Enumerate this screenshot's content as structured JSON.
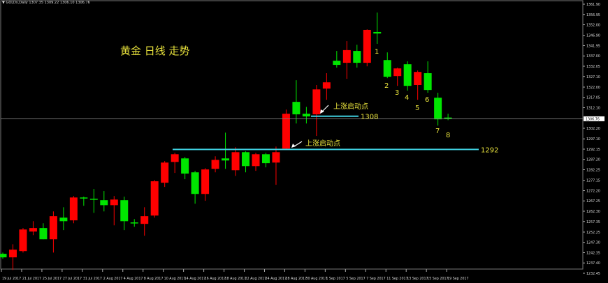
{
  "header": {
    "symbol": "GOLDs,Daily",
    "ohlc_text": "1307.35 1309.22 1306.10 1306.76",
    "collapse_icon": "triangle-down-icon"
  },
  "annotations": {
    "title": "黄金 日线 走势",
    "start_point_label_1": "上涨启动点",
    "start_point_label_2": "上涨启动点",
    "level_1308_label": "1308",
    "level_1292_label": "1292",
    "wave_labels": [
      "1",
      "2",
      "3",
      "4",
      "5",
      "6",
      "7",
      "8"
    ]
  },
  "colors": {
    "background": "#000000",
    "bull": "#ff0000",
    "bear": "#00e600",
    "level_line": "#40d0e0",
    "annotation_text": "#e6e03c",
    "current_price_line": "#808080"
  },
  "chart_data": {
    "type": "candlestick",
    "symbol": "GOLDs",
    "timeframe": "Daily",
    "ylim": [
      1232.45,
      1361.9
    ],
    "current_price": "1306.76",
    "y_ticks": [
      "1361.90",
      "1356.95",
      "1352.00",
      "1346.90",
      "1341.95",
      "1337.00",
      "1332.05",
      "1327.10",
      "1322.00",
      "1317.05",
      "1312.10",
      "1302.20",
      "1297.10",
      "1292.15",
      "1287.20",
      "1282.25",
      "1277.15",
      "1272.20",
      "1267.25",
      "1262.30",
      "1257.35",
      "1252.25",
      "1247.30",
      "1242.35",
      "1237.40",
      "1232.45"
    ],
    "x_ticks": [
      "19 Jul 2017",
      "21 Jul 2017",
      "25 Jul 2017",
      "27 Jul 2017",
      "31 Jul 2017",
      "2 Aug 2017",
      "4 Aug 2017",
      "8 Aug 2017",
      "10 Aug 2017",
      "14 Aug 2017",
      "16 Aug 2017",
      "18 Aug 2017",
      "22 Aug 2017",
      "24 Aug 2017",
      "28 Aug 2017",
      "30 Aug 2017",
      "1 Sep 2017",
      "5 Sep 2017",
      "7 Sep 2017",
      "11 Sep 2017",
      "13 Sep 2017",
      "15 Sep 2017",
      "19 Sep 2017"
    ],
    "levels": [
      {
        "value": 1308,
        "label": "1308"
      },
      {
        "value": 1292,
        "label": "1292"
      }
    ],
    "candles": [
      [
        1241.8,
        1242.4,
        1239.4,
        1240.1
      ],
      [
        1240.1,
        1246.4,
        1234.0,
        1243.8
      ],
      [
        1243.1,
        1254.2,
        1242.4,
        1253.5
      ],
      [
        1252.5,
        1257.5,
        1250.8,
        1254.2
      ],
      [
        1254.2,
        1256.5,
        1248.8,
        1248.8
      ],
      [
        1248.8,
        1262.2,
        1242.4,
        1259.9
      ],
      [
        1259.2,
        1264.2,
        1253.2,
        1257.5
      ],
      [
        1257.9,
        1269.6,
        1256.5,
        1268.9
      ],
      [
        1268.9,
        1269.3,
        1264.9,
        1268.6
      ],
      [
        1268.3,
        1273.0,
        1261.5,
        1267.9
      ],
      [
        1267.6,
        1272.0,
        1262.2,
        1265.2
      ],
      [
        1265.2,
        1269.6,
        1255.5,
        1267.9
      ],
      [
        1267.6,
        1269.3,
        1253.2,
        1257.5
      ],
      [
        1256.9,
        1258.5,
        1254.8,
        1256.5
      ],
      [
        1256.2,
        1264.2,
        1250.5,
        1259.9
      ],
      [
        1260.2,
        1277.3,
        1259.2,
        1276.7
      ],
      [
        1276.0,
        1286.4,
        1274.0,
        1285.7
      ],
      [
        1286.0,
        1290.4,
        1280.7,
        1289.7
      ],
      [
        1287.7,
        1288.4,
        1277.7,
        1280.4
      ],
      [
        1281.0,
        1281.7,
        1265.9,
        1270.6
      ],
      [
        1270.6,
        1283.0,
        1267.3,
        1282.4
      ],
      [
        1282.7,
        1288.7,
        1281.0,
        1287.0
      ],
      [
        1287.7,
        1300.1,
        1282.7,
        1286.7
      ],
      [
        1282.0,
        1293.1,
        1279.3,
        1290.7
      ],
      [
        1290.7,
        1291.1,
        1281.0,
        1284.0
      ],
      [
        1284.0,
        1290.4,
        1281.7,
        1289.7
      ],
      [
        1289.7,
        1290.4,
        1283.4,
        1285.4
      ],
      [
        1285.7,
        1293.4,
        1275.0,
        1290.7
      ],
      [
        1292.4,
        1311.2,
        1292.1,
        1309.2
      ],
      [
        1314.9,
        1325.3,
        1304.5,
        1308.9
      ],
      [
        1309.2,
        1312.5,
        1304.5,
        1307.9
      ],
      [
        1308.9,
        1323.0,
        1298.5,
        1320.9
      ],
      [
        1321.3,
        1328.7,
        1315.9,
        1324.3
      ],
      [
        1334.7,
        1339.4,
        1331.4,
        1332.7
      ],
      [
        1333.7,
        1344.1,
        1326.0,
        1339.8
      ],
      [
        1339.4,
        1342.4,
        1331.4,
        1333.7
      ],
      [
        1333.7,
        1349.8,
        1332.0,
        1349.5
      ],
      [
        1348.5,
        1357.9,
        1342.8,
        1347.8
      ],
      [
        1335.0,
        1338.7,
        1326.3,
        1327.0
      ],
      [
        1327.3,
        1331.4,
        1322.6,
        1331.0
      ],
      [
        1333.0,
        1334.4,
        1320.3,
        1322.6
      ],
      [
        1323.0,
        1330.0,
        1315.9,
        1329.3
      ],
      [
        1328.7,
        1334.4,
        1319.3,
        1320.6
      ],
      [
        1316.9,
        1319.3,
        1303.5,
        1306.5
      ],
      [
        1307.35,
        1309.22,
        1306.1,
        1306.76
      ]
    ]
  }
}
